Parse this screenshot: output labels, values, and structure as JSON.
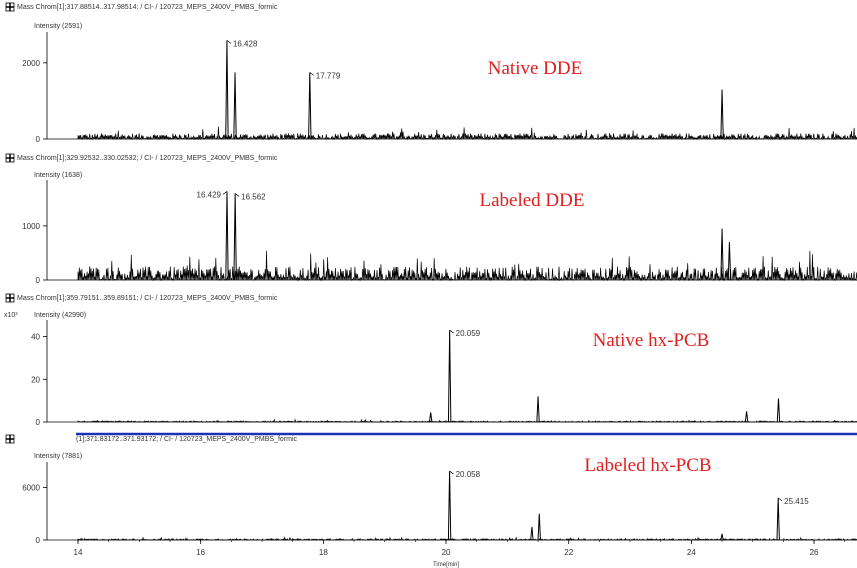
{
  "colors": {
    "trace": "#000000",
    "red_label": "#e02020",
    "separator": "#1a33b0",
    "axis": "#000000"
  },
  "icons": [
    "chromatogram-header-icon"
  ],
  "x_axis": {
    "range": [
      14,
      26.7
    ],
    "ticks": [
      "14",
      "16",
      "18",
      "20",
      "22",
      "24",
      "26"
    ],
    "tick_values": [
      14,
      16,
      18,
      20,
      22,
      24,
      26
    ],
    "label": "Time[min]"
  },
  "chart_data": [
    {
      "type": "line",
      "header": "Mass Chrom[1];317.88514..317.98514; / CI- / 120723_MEPS_2400V_PMBS_formic",
      "intensity_label": "Intensity (2591)",
      "scale_note": "",
      "annotation": "Native DDE",
      "y_ticks": [
        "0",
        "2000"
      ],
      "y_tick_values": [
        0,
        2000
      ],
      "ylim": [
        0,
        2600
      ],
      "noise_level": 150,
      "peaks": [
        {
          "x": 16.428,
          "y": 2591,
          "label": "16.428"
        },
        {
          "x": 16.56,
          "y": 1750,
          "label": ""
        },
        {
          "x": 17.779,
          "y": 1750,
          "label": "17.779"
        },
        {
          "x": 24.5,
          "y": 1300,
          "label": ""
        }
      ]
    },
    {
      "type": "line",
      "header": "Mass Chrom[1];329.92532..330.02532; / CI- / 120723_MEPS_2400V_PMBS_formic",
      "intensity_label": "Intensity (1638)",
      "scale_note": "",
      "annotation": "Labeled DDE",
      "y_ticks": [
        "0",
        "1000"
      ],
      "y_tick_values": [
        0,
        1000
      ],
      "ylim": [
        0,
        1700
      ],
      "noise_level": 250,
      "peaks": [
        {
          "x": 16.429,
          "y": 1638,
          "label": "16.429"
        },
        {
          "x": 16.562,
          "y": 1600,
          "label": "16.562"
        },
        {
          "x": 24.5,
          "y": 950,
          "label": ""
        },
        {
          "x": 24.62,
          "y": 700,
          "label": ""
        }
      ]
    },
    {
      "type": "line",
      "header": "Mass Chrom[1];359.79151..359.89151; / CI- / 120723_MEPS_2400V_PMBS_formic",
      "intensity_label": "Intensity (42990)",
      "scale_note": "x10³",
      "annotation": "Native hx-PCB",
      "y_ticks": [
        "0",
        "20",
        "40"
      ],
      "y_tick_values": [
        0,
        20,
        40
      ],
      "ylim": [
        0,
        44
      ],
      "noise_level": 0.5,
      "peaks": [
        {
          "x": 19.75,
          "y": 4.5,
          "label": ""
        },
        {
          "x": 20.059,
          "y": 42.99,
          "label": "20.059"
        },
        {
          "x": 21.5,
          "y": 12,
          "label": ""
        },
        {
          "x": 24.9,
          "y": 5,
          "label": ""
        },
        {
          "x": 25.42,
          "y": 11,
          "label": ""
        }
      ]
    },
    {
      "type": "line",
      "header": "(1];371.83172..371.93172; / CI- / 120723_MEPS_2400V_PMBS_formic",
      "intensity_label": "Intensity (7881)",
      "scale_note": "",
      "annotation": "Labeled hx-PCB",
      "y_ticks": [
        "0",
        "6000"
      ],
      "y_tick_values": [
        0,
        6000
      ],
      "ylim": [
        0,
        8000
      ],
      "noise_level": 150,
      "peaks": [
        {
          "x": 20.058,
          "y": 7881,
          "label": "20.058"
        },
        {
          "x": 21.4,
          "y": 1500,
          "label": ""
        },
        {
          "x": 21.52,
          "y": 3000,
          "label": ""
        },
        {
          "x": 24.5,
          "y": 700,
          "label": ""
        },
        {
          "x": 25.415,
          "y": 4800,
          "label": "25.415"
        }
      ]
    }
  ]
}
